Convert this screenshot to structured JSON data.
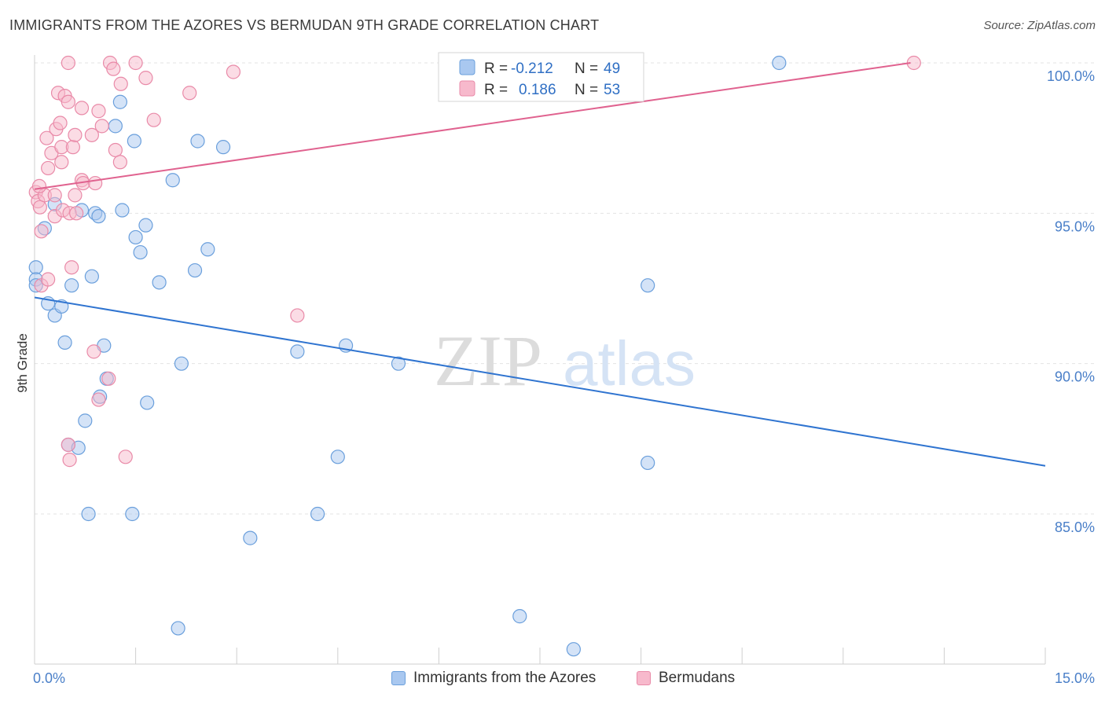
{
  "title": "IMMIGRANTS FROM THE AZORES VS BERMUDAN 9TH GRADE CORRELATION CHART",
  "source": "Source: ZipAtlas.com",
  "watermark": {
    "zip": "ZIP",
    "atlas": "atlas"
  },
  "colors": {
    "blue_fill": "#a9c8f0",
    "blue_stroke": "#6a9fdc",
    "blue_line": "#2f74d0",
    "pink_fill": "#f7b9cc",
    "pink_stroke": "#e98aa8",
    "pink_line": "#e0628f",
    "grid": "#e3e3e3",
    "tick_text": "#4a7fc8"
  },
  "legend": {
    "r_label": "R =",
    "n_label": "N =",
    "rows": [
      {
        "series": "azores",
        "r": "-0.212",
        "n": "49"
      },
      {
        "series": "bermudans",
        "r": "0.186",
        "n": "53"
      }
    ]
  },
  "chart_data": {
    "type": "scatter",
    "title": "IMMIGRANTS FROM THE AZORES VS BERMUDAN 9TH GRADE CORRELATION CHART",
    "xlabel": "",
    "ylabel": "9th Grade",
    "xlim": [
      0,
      15
    ],
    "ylim": [
      80.0,
      100.5
    ],
    "x_tick_labels": [
      {
        "value": 0,
        "label": "0.0%"
      },
      {
        "value": 15,
        "label": "15.0%"
      }
    ],
    "y_ticks": [
      {
        "value": 100,
        "label": "100.0%"
      },
      {
        "value": 95,
        "label": "95.0%"
      },
      {
        "value": 90,
        "label": "90.0%"
      },
      {
        "value": 85,
        "label": "85.0%"
      }
    ],
    "x_minor_ticks": [
      0,
      1.5,
      3,
      4.5,
      6,
      7.5,
      9,
      10.5,
      12,
      13.5,
      15
    ],
    "grid": true,
    "legend_position": "top-center",
    "series": [
      {
        "name": "Immigrants from the Azores",
        "color_key": "blue",
        "r": -0.212,
        "n": 49,
        "trend": {
          "x": [
            0,
            15
          ],
          "y": [
            92.2,
            86.6
          ]
        },
        "points": [
          {
            "x": 0.02,
            "y": 93.2
          },
          {
            "x": 0.02,
            "y": 92.8
          },
          {
            "x": 0.02,
            "y": 92.6
          },
          {
            "x": 0.15,
            "y": 94.5
          },
          {
            "x": 0.2,
            "y": 92.0
          },
          {
            "x": 0.3,
            "y": 91.6
          },
          {
            "x": 0.3,
            "y": 95.3
          },
          {
            "x": 0.4,
            "y": 91.9
          },
          {
            "x": 0.45,
            "y": 90.7
          },
          {
            "x": 0.5,
            "y": 87.3
          },
          {
            "x": 0.55,
            "y": 92.6
          },
          {
            "x": 0.65,
            "y": 87.2
          },
          {
            "x": 0.7,
            "y": 95.1
          },
          {
            "x": 0.75,
            "y": 88.1
          },
          {
            "x": 0.8,
            "y": 85.0
          },
          {
            "x": 0.85,
            "y": 92.9
          },
          {
            "x": 0.9,
            "y": 95.0
          },
          {
            "x": 0.95,
            "y": 94.9
          },
          {
            "x": 0.97,
            "y": 88.9
          },
          {
            "x": 1.03,
            "y": 90.6
          },
          {
            "x": 1.07,
            "y": 89.5
          },
          {
            "x": 1.2,
            "y": 97.9
          },
          {
            "x": 1.27,
            "y": 98.7
          },
          {
            "x": 1.3,
            "y": 95.1
          },
          {
            "x": 1.45,
            "y": 85.0
          },
          {
            "x": 1.48,
            "y": 97.4
          },
          {
            "x": 1.5,
            "y": 94.2
          },
          {
            "x": 1.57,
            "y": 93.7
          },
          {
            "x": 1.65,
            "y": 94.6
          },
          {
            "x": 1.67,
            "y": 88.7
          },
          {
            "x": 1.85,
            "y": 92.7
          },
          {
            "x": 2.05,
            "y": 96.1
          },
          {
            "x": 2.13,
            "y": 81.2
          },
          {
            "x": 2.18,
            "y": 90.0
          },
          {
            "x": 2.38,
            "y": 93.1
          },
          {
            "x": 2.42,
            "y": 97.4
          },
          {
            "x": 2.57,
            "y": 93.8
          },
          {
            "x": 2.8,
            "y": 97.2
          },
          {
            "x": 3.2,
            "y": 84.2
          },
          {
            "x": 3.9,
            "y": 90.4
          },
          {
            "x": 4.2,
            "y": 85.0
          },
          {
            "x": 4.5,
            "y": 86.9
          },
          {
            "x": 4.62,
            "y": 90.6
          },
          {
            "x": 5.4,
            "y": 90.0
          },
          {
            "x": 7.2,
            "y": 81.6
          },
          {
            "x": 8.0,
            "y": 80.5
          },
          {
            "x": 9.1,
            "y": 92.6
          },
          {
            "x": 9.1,
            "y": 86.7
          },
          {
            "x": 11.05,
            "y": 100.0
          }
        ]
      },
      {
        "name": "Bermudans",
        "color_key": "pink",
        "r": 0.186,
        "n": 53,
        "trend": {
          "x": [
            0,
            13.0
          ],
          "y": [
            95.8,
            100.0
          ]
        },
        "points": [
          {
            "x": 0.02,
            "y": 95.7
          },
          {
            "x": 0.05,
            "y": 95.4
          },
          {
            "x": 0.08,
            "y": 95.2
          },
          {
            "x": 0.1,
            "y": 94.4
          },
          {
            "x": 0.1,
            "y": 92.6
          },
          {
            "x": 0.15,
            "y": 95.6
          },
          {
            "x": 0.18,
            "y": 97.5
          },
          {
            "x": 0.2,
            "y": 96.5
          },
          {
            "x": 0.2,
            "y": 92.8
          },
          {
            "x": 0.25,
            "y": 97.0
          },
          {
            "x": 0.3,
            "y": 95.6
          },
          {
            "x": 0.3,
            "y": 94.9
          },
          {
            "x": 0.32,
            "y": 97.8
          },
          {
            "x": 0.35,
            "y": 99.0
          },
          {
            "x": 0.38,
            "y": 98.0
          },
          {
            "x": 0.4,
            "y": 97.2
          },
          {
            "x": 0.4,
            "y": 96.7
          },
          {
            "x": 0.42,
            "y": 95.1
          },
          {
            "x": 0.45,
            "y": 98.9
          },
          {
            "x": 0.5,
            "y": 100.0
          },
          {
            "x": 0.5,
            "y": 98.7
          },
          {
            "x": 0.5,
            "y": 87.3
          },
          {
            "x": 0.52,
            "y": 86.8
          },
          {
            "x": 0.52,
            "y": 95.0
          },
          {
            "x": 0.55,
            "y": 93.2
          },
          {
            "x": 0.57,
            "y": 97.2
          },
          {
            "x": 0.6,
            "y": 97.6
          },
          {
            "x": 0.6,
            "y": 95.6
          },
          {
            "x": 0.62,
            "y": 95.0
          },
          {
            "x": 0.7,
            "y": 98.5
          },
          {
            "x": 0.7,
            "y": 96.1
          },
          {
            "x": 0.72,
            "y": 96.0
          },
          {
            "x": 0.85,
            "y": 97.6
          },
          {
            "x": 0.88,
            "y": 90.4
          },
          {
            "x": 0.9,
            "y": 96.0
          },
          {
            "x": 0.95,
            "y": 88.8
          },
          {
            "x": 0.95,
            "y": 98.4
          },
          {
            "x": 1.0,
            "y": 97.9
          },
          {
            "x": 1.1,
            "y": 89.5
          },
          {
            "x": 1.12,
            "y": 100.0
          },
          {
            "x": 1.17,
            "y": 99.8
          },
          {
            "x": 1.2,
            "y": 97.1
          },
          {
            "x": 1.27,
            "y": 96.7
          },
          {
            "x": 1.28,
            "y": 99.3
          },
          {
            "x": 1.35,
            "y": 86.9
          },
          {
            "x": 1.5,
            "y": 100.0
          },
          {
            "x": 1.65,
            "y": 99.5
          },
          {
            "x": 1.77,
            "y": 98.1
          },
          {
            "x": 2.3,
            "y": 99.0
          },
          {
            "x": 2.95,
            "y": 99.7
          },
          {
            "x": 3.9,
            "y": 91.6
          },
          {
            "x": 13.05,
            "y": 100.0
          },
          {
            "x": 0.07,
            "y": 95.9
          }
        ]
      }
    ]
  }
}
